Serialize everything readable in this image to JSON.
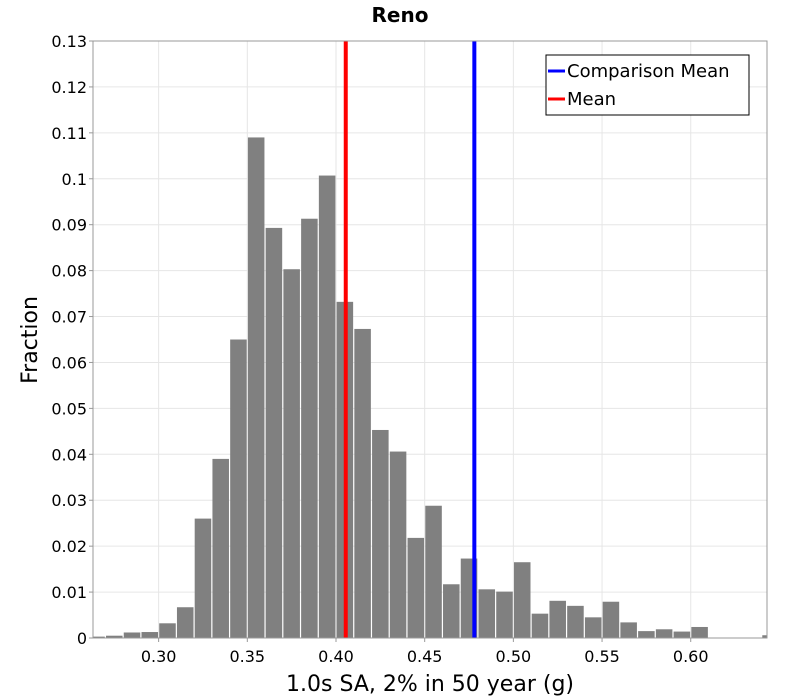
{
  "chart_data": {
    "type": "bar",
    "title": "Reno",
    "xlabel": "1.0s SA, 2% in 50 year (g)",
    "ylabel": "Fraction",
    "xlim": [
      0.263,
      0.643
    ],
    "ylim": [
      0,
      0.13
    ],
    "bin_width": 0.01,
    "xticks": [
      {
        "value": 0.3,
        "label": "0.30"
      },
      {
        "value": 0.35,
        "label": "0.35"
      },
      {
        "value": 0.4,
        "label": "0.40"
      },
      {
        "value": 0.45,
        "label": "0.45"
      },
      {
        "value": 0.5,
        "label": "0.50"
      },
      {
        "value": 0.55,
        "label": "0.55"
      },
      {
        "value": 0.6,
        "label": "0.60"
      }
    ],
    "yticks": [
      {
        "value": 0,
        "label": "0"
      },
      {
        "value": 0.01,
        "label": "0.01"
      },
      {
        "value": 0.02,
        "label": "0.02"
      },
      {
        "value": 0.03,
        "label": "0.03"
      },
      {
        "value": 0.04,
        "label": "0.04"
      },
      {
        "value": 0.05,
        "label": "0.05"
      },
      {
        "value": 0.06,
        "label": "0.06"
      },
      {
        "value": 0.07,
        "label": "0.07"
      },
      {
        "value": 0.08,
        "label": "0.08"
      },
      {
        "value": 0.09,
        "label": "0.09"
      },
      {
        "value": 0.1,
        "label": "0.1"
      },
      {
        "value": 0.11,
        "label": "0.11"
      },
      {
        "value": 0.12,
        "label": "0.12"
      },
      {
        "value": 0.13,
        "label": "0.13"
      }
    ],
    "bins": [
      {
        "center": 0.265,
        "value": 0.0003
      },
      {
        "center": 0.275,
        "value": 0.0005
      },
      {
        "center": 0.285,
        "value": 0.0012
      },
      {
        "center": 0.295,
        "value": 0.0013
      },
      {
        "center": 0.305,
        "value": 0.0032
      },
      {
        "center": 0.315,
        "value": 0.0067
      },
      {
        "center": 0.325,
        "value": 0.026
      },
      {
        "center": 0.335,
        "value": 0.039
      },
      {
        "center": 0.345,
        "value": 0.065
      },
      {
        "center": 0.355,
        "value": 0.109
      },
      {
        "center": 0.365,
        "value": 0.0893
      },
      {
        "center": 0.375,
        "value": 0.0803
      },
      {
        "center": 0.385,
        "value": 0.0913
      },
      {
        "center": 0.395,
        "value": 0.1007
      },
      {
        "center": 0.405,
        "value": 0.0732
      },
      {
        "center": 0.415,
        "value": 0.0673
      },
      {
        "center": 0.425,
        "value": 0.0453
      },
      {
        "center": 0.435,
        "value": 0.0406
      },
      {
        "center": 0.445,
        "value": 0.0218
      },
      {
        "center": 0.455,
        "value": 0.0288
      },
      {
        "center": 0.465,
        "value": 0.0117
      },
      {
        "center": 0.475,
        "value": 0.0173
      },
      {
        "center": 0.485,
        "value": 0.0106
      },
      {
        "center": 0.495,
        "value": 0.0101
      },
      {
        "center": 0.505,
        "value": 0.0165
      },
      {
        "center": 0.515,
        "value": 0.0053
      },
      {
        "center": 0.525,
        "value": 0.0081
      },
      {
        "center": 0.535,
        "value": 0.007
      },
      {
        "center": 0.545,
        "value": 0.0045
      },
      {
        "center": 0.555,
        "value": 0.0079
      },
      {
        "center": 0.565,
        "value": 0.0034
      },
      {
        "center": 0.575,
        "value": 0.0015
      },
      {
        "center": 0.585,
        "value": 0.0019
      },
      {
        "center": 0.595,
        "value": 0.0014
      },
      {
        "center": 0.605,
        "value": 0.0024
      },
      {
        "center": 0.615,
        "value": 0.0001
      },
      {
        "center": 0.625,
        "value": 0.0001
      },
      {
        "center": 0.645,
        "value": 0.0006
      }
    ],
    "vlines": [
      {
        "name": "Comparison Mean",
        "x": 0.478,
        "color": "#0000ff"
      },
      {
        "name": "Mean",
        "x": 0.4055,
        "color": "#ff0000"
      }
    ],
    "legend": {
      "position": "top-right",
      "entries": [
        {
          "label": "Comparison Mean",
          "color": "#0000ff"
        },
        {
          "label": "Mean",
          "color": "#ff0000"
        }
      ]
    },
    "bar_color": "#808080",
    "grid": true
  }
}
